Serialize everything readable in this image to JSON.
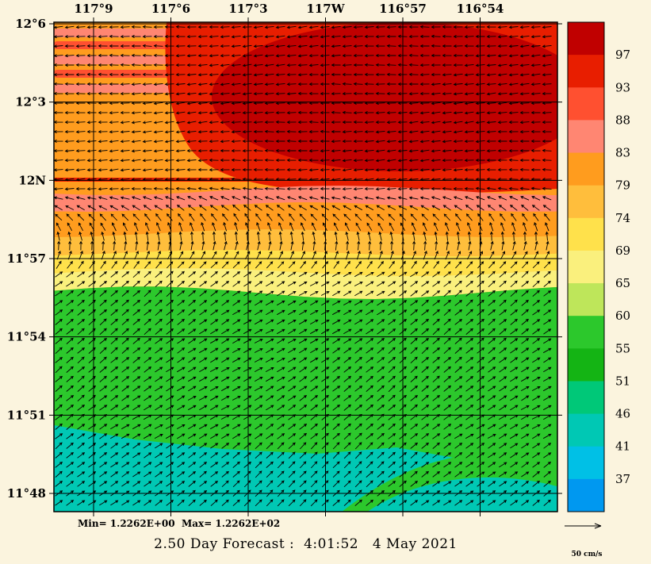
{
  "title": "2.50 Day Forecast :  4:01:52   4 May 2021",
  "background_color": "#FBF4DE",
  "annotations": {
    "min_max": "Min= 1.2262E+00  Max= 1.2262E+02",
    "vector_scale_label": "50 cm/s"
  },
  "chart_data": {
    "type": "heatmap",
    "subtype": "vector-field-over-filled-contours",
    "title": "2.50 Day Forecast :  4:01:52   4 May 2021",
    "x_tick_labels": [
      "117°9",
      "117°6",
      "117°3",
      "117W",
      "116°57",
      "116°54"
    ],
    "y_tick_labels": [
      "12°6",
      "12°3",
      "12N",
      "11°57",
      "11°54",
      "11°51",
      "11°48"
    ],
    "value_min": "1.2262E+00",
    "value_max": "1.2262E+02",
    "grid": true,
    "colorbar": {
      "position": "right",
      "units": "cm/s",
      "boundary_labels": [
        97,
        93,
        88,
        83,
        79,
        74,
        69,
        65,
        60,
        55,
        51,
        46,
        41,
        37
      ],
      "band_colors_top_to_bottom": [
        "#C00000",
        "#E81E00",
        "#FF5030",
        "#FF8672",
        "#FF9C1E",
        "#FFBE3C",
        "#FFE14B",
        "#FAF07D",
        "#BEE65A",
        "#2CC82C",
        "#14B414",
        "#00C878",
        "#00C8B4",
        "#00C0E6",
        "#0098F0"
      ]
    },
    "vector_scale": {
      "value": 50,
      "units": "cm/s",
      "label": "50 cm/s"
    },
    "flow_summary": {
      "upper_region": "westward current over high speeds (roughly 83 to >97 cm/s, red shades, north of 12N)",
      "middle_region": "transition band of 65-83 cm/s (orange and yellow shades near 11°57-12N)",
      "lower_region": "northeastward current over moderate speeds (roughly 55-60 cm/s green, 41-46 cm/s teal band south of 11°51)"
    }
  }
}
